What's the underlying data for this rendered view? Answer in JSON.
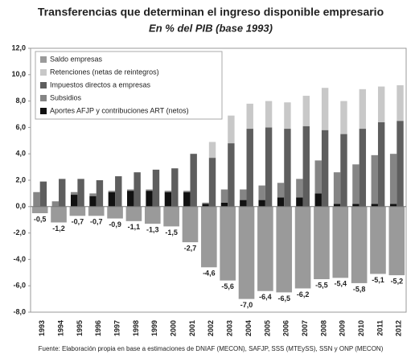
{
  "chart_data": {
    "type": "bar",
    "title": "Transferencias que determinan el ingreso disponible empresario",
    "subtitle": "En % del PIB (base 1993)",
    "source": "Fuente: Elaboración propia en base a estimaciones de DNIAF (MECON), SAFJP, SSS (MTEySS), SSN y ONP (MECON)",
    "categories": [
      "1993",
      "1994",
      "1995",
      "1996",
      "1997",
      "1998",
      "1999",
      "2000",
      "2001",
      "2002",
      "2003",
      "2004",
      "2005",
      "2006",
      "2007",
      "2008",
      "2009",
      "2010",
      "2011",
      "2012"
    ],
    "series": [
      {
        "name": "Saldo empresas",
        "color": "#9a9a9a",
        "values": [
          -0.5,
          -1.2,
          -0.7,
          -0.7,
          -0.9,
          -1.1,
          -1.3,
          -1.5,
          -2.7,
          -4.6,
          -5.6,
          -7.0,
          -6.4,
          -6.5,
          -6.2,
          -5.5,
          -5.4,
          -5.8,
          -5.1,
          -5.2
        ],
        "value_labels": [
          "-0,5",
          "-1,2",
          "-0,7",
          "-0,7",
          "-0,9",
          "-1,1",
          "-1,3",
          "-1,5",
          "-2,7",
          "-4,6",
          "-5,6",
          "-7,0",
          "-6,4",
          "-6,5",
          "-6,2",
          "-5,5",
          "-5,4",
          "-5,8",
          "-5,1",
          "-5,2"
        ]
      },
      {
        "name": "Retenciones (netas de reintegros)",
        "color": "#c8c8c8",
        "values": [
          0,
          0,
          0,
          0,
          0,
          0,
          0,
          0,
          0,
          1.2,
          2.1,
          1.9,
          2.0,
          2.0,
          2.3,
          3.2,
          2.5,
          3.0,
          2.7,
          2.7
        ]
      },
      {
        "name": "Impuestos directos a empresas",
        "color": "#5e5e5e",
        "values": [
          1.9,
          2.1,
          2.1,
          2.0,
          2.3,
          2.6,
          2.8,
          2.9,
          4.0,
          3.7,
          4.8,
          5.9,
          6.0,
          5.9,
          6.1,
          5.8,
          5.5,
          5.9,
          6.4,
          6.5
        ]
      },
      {
        "name": "Subsidios",
        "color": "#858585",
        "values": [
          1.1,
          0.4,
          0.2,
          0.2,
          0.1,
          0.1,
          0.1,
          0.1,
          0.1,
          0.1,
          1.0,
          0.8,
          1.1,
          1.1,
          1.4,
          2.5,
          2.4,
          3.0,
          3.7,
          3.8
        ]
      },
      {
        "name": "Aportes AFJP y contribuciones ART (netos)",
        "color": "#111111",
        "values": [
          0,
          0,
          0.9,
          0.8,
          1.1,
          1.2,
          1.2,
          1.1,
          1.1,
          0.2,
          0.3,
          0.5,
          0.5,
          0.7,
          0.7,
          1.0,
          0.2,
          0.2,
          0.2,
          0.2
        ]
      }
    ],
    "ylim": [
      -8,
      12
    ],
    "yticks": [
      {
        "value": -8,
        "label": "-8,0"
      },
      {
        "value": -6,
        "label": "-6,0"
      },
      {
        "value": -4,
        "label": "-4,0"
      },
      {
        "value": -2,
        "label": "-2,0"
      },
      {
        "value": 0,
        "label": "0,0"
      },
      {
        "value": 2,
        "label": "2,0"
      },
      {
        "value": 4,
        "label": "4,0"
      },
      {
        "value": 6,
        "label": "6,0"
      },
      {
        "value": 8,
        "label": "8,0"
      },
      {
        "value": 10,
        "label": "10,0"
      },
      {
        "value": 12,
        "label": "12,0"
      }
    ],
    "legend": "top-left"
  }
}
